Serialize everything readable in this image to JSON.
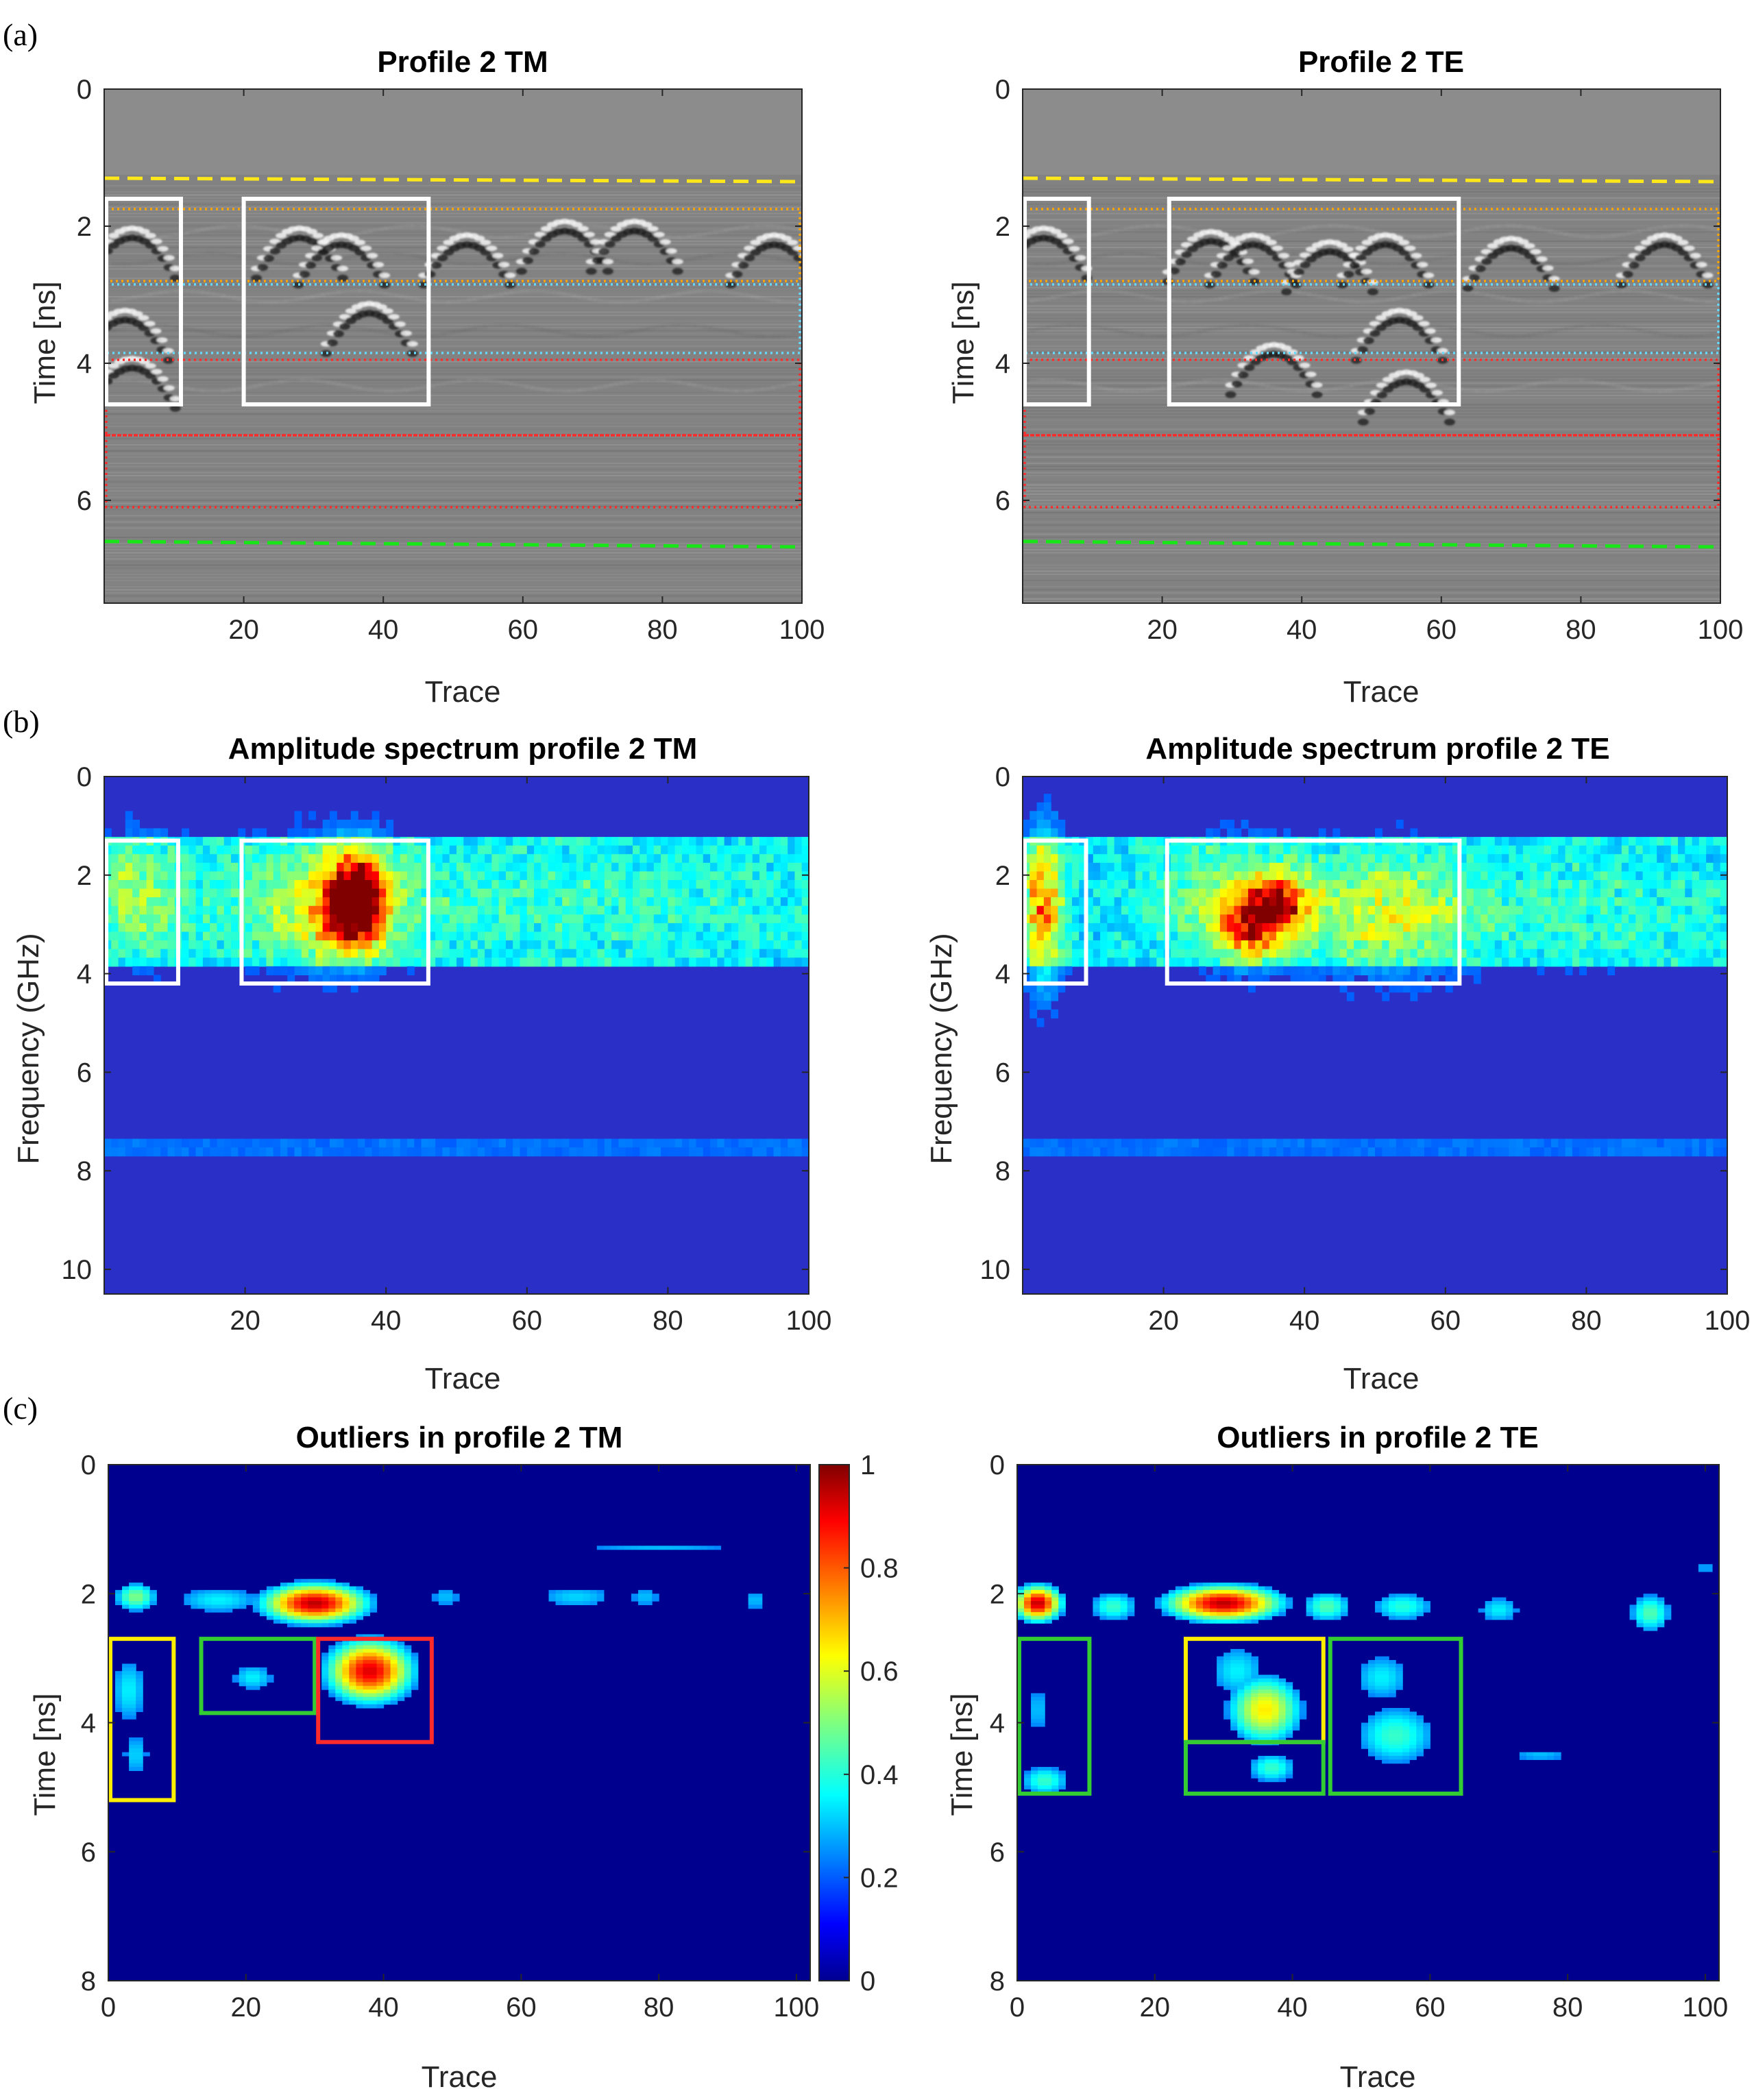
{
  "panel_labels": [
    "(a)",
    "(b)",
    "(c)"
  ],
  "colors": {
    "yellow_dash": "#ffe81a",
    "green_dash": "#19e619",
    "orange_dot": "#ffa500",
    "cyan_dot": "#66d9ff",
    "red_dot": "#ff2a2a",
    "white_box": "#ffffff",
    "green_box": "#33cc33",
    "yellow_box": "#ffee00",
    "red_box": "#ee1111"
  },
  "chart_data": [
    {
      "id": "a_tm",
      "type": "heatmap",
      "style": "radargram",
      "title": "Profile 2 TM",
      "xlabel": "Trace",
      "ylabel": "Time [ns]",
      "xlim": [
        0,
        100
      ],
      "ylim": [
        0,
        7.5
      ],
      "xticks": [
        20,
        40,
        60,
        80,
        100
      ],
      "yticks": [
        0,
        2,
        4,
        6
      ],
      "horizontal_lines": [
        {
          "type": "yellow-dashed",
          "x": [
            0,
            100
          ],
          "y": [
            1.3,
            1.35
          ]
        },
        {
          "type": "green-dashed",
          "x": [
            0,
            100
          ],
          "y": [
            6.6,
            6.68
          ]
        }
      ],
      "dotted_bands": [
        {
          "color": "orange",
          "x": [
            0,
            100
          ],
          "y": [
            1.75,
            2.8
          ]
        },
        {
          "color": "cyan",
          "x": [
            0,
            100
          ],
          "y": [
            2.85,
            3.85
          ]
        },
        {
          "color": "red",
          "x": [
            0,
            100
          ],
          "y": [
            3.95,
            5.05
          ]
        },
        {
          "color": "red",
          "x": [
            0,
            100
          ],
          "y": [
            5.05,
            6.1
          ]
        }
      ],
      "boxes": [
        {
          "color": "white",
          "x": [
            0.3,
            11
          ],
          "y": [
            1.6,
            4.6
          ]
        },
        {
          "color": "white",
          "x": [
            20,
            46.5
          ],
          "y": [
            1.6,
            4.6
          ]
        }
      ]
    },
    {
      "id": "a_te",
      "type": "heatmap",
      "style": "radargram",
      "title": "Profile 2 TE",
      "xlabel": "Trace",
      "ylabel": "Time [ns]",
      "xlim": [
        0,
        100
      ],
      "ylim": [
        0,
        7.5
      ],
      "xticks": [
        20,
        40,
        60,
        80,
        100
      ],
      "yticks": [
        0,
        2,
        4,
        6
      ],
      "horizontal_lines": [
        {
          "type": "yellow-dashed",
          "x": [
            0,
            100
          ],
          "y": [
            1.3,
            1.35
          ]
        },
        {
          "type": "green-dashed",
          "x": [
            0,
            100
          ],
          "y": [
            6.6,
            6.68
          ]
        }
      ],
      "dotted_bands": [
        {
          "color": "orange",
          "x": [
            0,
            100
          ],
          "y": [
            1.75,
            2.8
          ]
        },
        {
          "color": "cyan",
          "x": [
            0,
            100
          ],
          "y": [
            2.85,
            3.85
          ]
        },
        {
          "color": "red",
          "x": [
            0,
            100
          ],
          "y": [
            3.95,
            5.05
          ]
        },
        {
          "color": "red",
          "x": [
            0,
            100
          ],
          "y": [
            5.05,
            6.1
          ]
        }
      ],
      "boxes": [
        {
          "color": "white",
          "x": [
            0.3,
            9.5
          ],
          "y": [
            1.6,
            4.6
          ]
        },
        {
          "color": "white",
          "x": [
            21,
            62.5
          ],
          "y": [
            1.6,
            4.6
          ]
        }
      ]
    },
    {
      "id": "b_tm",
      "type": "heatmap",
      "style": "spectrum",
      "title": "Amplitude spectrum profile 2 TM",
      "xlabel": "Trace",
      "ylabel": "Frequency (GHz)",
      "xlim": [
        0,
        100
      ],
      "ylim": [
        0,
        10.5
      ],
      "xticks": [
        20,
        40,
        60,
        80,
        100
      ],
      "yticks": [
        0,
        2,
        4,
        6,
        8,
        10
      ],
      "boxes": [
        {
          "color": "white",
          "x": [
            0.3,
            10.5
          ],
          "y": [
            1.3,
            4.2
          ]
        },
        {
          "color": "white",
          "x": [
            19.5,
            46
          ],
          "y": [
            1.3,
            4.2
          ]
        }
      ],
      "hotspots": [
        {
          "x": 5,
          "y": 2.4,
          "v": 0.45,
          "sx": 4,
          "sy": 0.8
        },
        {
          "x": 30,
          "y": 2.6,
          "v": 0.45,
          "sx": 8,
          "sy": 0.8
        },
        {
          "x": 36,
          "y": 2.3,
          "v": 0.85,
          "sx": 3,
          "sy": 0.6
        },
        {
          "x": 35,
          "y": 2.9,
          "v": 0.7,
          "sx": 3,
          "sy": 0.5
        },
        {
          "x": 62,
          "y": 2.6,
          "v": 0.3,
          "sx": 35,
          "sy": 0.8
        }
      ]
    },
    {
      "id": "b_te",
      "type": "heatmap",
      "style": "spectrum",
      "title": "Amplitude spectrum profile 2 TE",
      "xlabel": "Trace",
      "ylabel": "Frequency (GHz)",
      "xlim": [
        0,
        100
      ],
      "ylim": [
        0,
        10.5
      ],
      "xticks": [
        20,
        40,
        60,
        80,
        100
      ],
      "yticks": [
        0,
        2,
        4,
        6,
        8,
        10
      ],
      "boxes": [
        {
          "color": "white",
          "x": [
            0.3,
            9
          ],
          "y": [
            1.3,
            4.2
          ]
        },
        {
          "color": "white",
          "x": [
            20.5,
            62
          ],
          "y": [
            1.3,
            4.2
          ]
        }
      ],
      "hotspots": [
        {
          "x": 3,
          "y": 2.7,
          "v": 0.75,
          "sx": 2,
          "sy": 1.0
        },
        {
          "x": 30,
          "y": 2.5,
          "v": 0.45,
          "sx": 8,
          "sy": 0.8
        },
        {
          "x": 36,
          "y": 2.6,
          "v": 0.8,
          "sx": 3,
          "sy": 0.4
        },
        {
          "x": 32,
          "y": 3.1,
          "v": 0.7,
          "sx": 3,
          "sy": 0.4
        },
        {
          "x": 52,
          "y": 2.8,
          "v": 0.5,
          "sx": 8,
          "sy": 0.8
        },
        {
          "x": 80,
          "y": 2.7,
          "v": 0.3,
          "sx": 15,
          "sy": 0.8
        }
      ]
    },
    {
      "id": "c_tm",
      "type": "heatmap",
      "style": "outliers",
      "title": "Outliers in profile 2 TM",
      "xlabel": "Trace",
      "ylabel": "Time [ns]",
      "xlim": [
        0,
        102
      ],
      "ylim": [
        0,
        8
      ],
      "xticks": [
        0,
        20,
        40,
        60,
        80,
        100
      ],
      "yticks": [
        0,
        2,
        4,
        6,
        8
      ],
      "blobs": [
        {
          "x": 4,
          "y": 2.05,
          "v": 0.5,
          "sx": 2.5,
          "sy": 0.18
        },
        {
          "x": 16,
          "y": 2.1,
          "v": 0.35,
          "sx": 6,
          "sy": 0.2
        },
        {
          "x": 30,
          "y": 2.15,
          "v": 0.95,
          "sx": 5.5,
          "sy": 0.22
        },
        {
          "x": 38,
          "y": 3.2,
          "v": 0.92,
          "sx": 4.5,
          "sy": 0.35
        },
        {
          "x": 3,
          "y": 3.5,
          "v": 0.35,
          "sx": 2.5,
          "sy": 0.5
        },
        {
          "x": 4,
          "y": 4.5,
          "v": 0.32,
          "sx": 2,
          "sy": 0.35
        },
        {
          "x": 21,
          "y": 3.3,
          "v": 0.35,
          "sx": 3,
          "sy": 0.2
        },
        {
          "x": 49,
          "y": 2.05,
          "v": 0.3,
          "sx": 2.5,
          "sy": 0.18
        },
        {
          "x": 68,
          "y": 2.05,
          "v": 0.32,
          "sx": 6,
          "sy": 0.18
        },
        {
          "x": 78,
          "y": 2.05,
          "v": 0.3,
          "sx": 2.5,
          "sy": 0.18
        },
        {
          "x": 94,
          "y": 2.1,
          "v": 0.3,
          "sx": 2,
          "sy": 0.18
        },
        {
          "x": 80,
          "y": 1.3,
          "v": 0.3,
          "sx": 14,
          "sy": 0.06
        }
      ],
      "boxes": [
        {
          "color": "yellow",
          "x": [
            0.3,
            9.5
          ],
          "y": [
            2.7,
            5.2
          ]
        },
        {
          "color": "green",
          "x": [
            13.5,
            30
          ],
          "y": [
            2.7,
            3.85
          ]
        },
        {
          "color": "red",
          "x": [
            30.5,
            47
          ],
          "y": [
            2.7,
            4.3
          ]
        }
      ],
      "colorbar": {
        "ticks": [
          0,
          0.2,
          0.4,
          0.6,
          0.8,
          1
        ],
        "tick_labels": [
          "0",
          "0.2",
          "0.4",
          "0.6",
          "0.8",
          "1"
        ]
      }
    },
    {
      "id": "c_te",
      "type": "heatmap",
      "style": "outliers",
      "title": "Outliers in profile 2 TE",
      "xlabel": "Trace",
      "ylabel": "Time [ns]",
      "xlim": [
        0,
        102
      ],
      "ylim": [
        0,
        8
      ],
      "xticks": [
        0,
        20,
        40,
        60,
        80,
        100
      ],
      "yticks": [
        0,
        2,
        4,
        6,
        8
      ],
      "blobs": [
        {
          "x": 3,
          "y": 2.15,
          "v": 0.95,
          "sx": 2.5,
          "sy": 0.2
        },
        {
          "x": 14,
          "y": 2.2,
          "v": 0.42,
          "sx": 3,
          "sy": 0.2
        },
        {
          "x": 30,
          "y": 2.15,
          "v": 0.95,
          "sx": 6,
          "sy": 0.2
        },
        {
          "x": 45,
          "y": 2.2,
          "v": 0.45,
          "sx": 3,
          "sy": 0.2
        },
        {
          "x": 56,
          "y": 2.2,
          "v": 0.4,
          "sx": 4,
          "sy": 0.2
        },
        {
          "x": 70,
          "y": 2.25,
          "v": 0.35,
          "sx": 3,
          "sy": 0.2
        },
        {
          "x": 92,
          "y": 2.3,
          "v": 0.45,
          "sx": 2.5,
          "sy": 0.25
        },
        {
          "x": 36,
          "y": 3.8,
          "v": 0.65,
          "sx": 4,
          "sy": 0.4
        },
        {
          "x": 32,
          "y": 3.2,
          "v": 0.35,
          "sx": 4,
          "sy": 0.4
        },
        {
          "x": 37,
          "y": 4.7,
          "v": 0.42,
          "sx": 3,
          "sy": 0.2
        },
        {
          "x": 55,
          "y": 4.2,
          "v": 0.42,
          "sx": 5,
          "sy": 0.4
        },
        {
          "x": 53,
          "y": 3.3,
          "v": 0.35,
          "sx": 4,
          "sy": 0.35
        },
        {
          "x": 3,
          "y": 3.8,
          "v": 0.3,
          "sx": 2,
          "sy": 0.4
        },
        {
          "x": 4,
          "y": 4.9,
          "v": 0.42,
          "sx": 3,
          "sy": 0.2
        },
        {
          "x": 76,
          "y": 4.5,
          "v": 0.3,
          "sx": 5,
          "sy": 0.1
        },
        {
          "x": 100,
          "y": 1.6,
          "v": 0.3,
          "sx": 2,
          "sy": 0.06
        }
      ],
      "boxes": [
        {
          "color": "green",
          "x": [
            0.3,
            10.5
          ],
          "y": [
            2.7,
            5.1
          ]
        },
        {
          "color": "yellow",
          "x": [
            24.5,
            44.5
          ],
          "y": [
            2.7,
            4.3
          ]
        },
        {
          "color": "green",
          "x": [
            24.5,
            44.5
          ],
          "y": [
            4.3,
            5.1
          ]
        },
        {
          "color": "green",
          "x": [
            45.5,
            64.5
          ],
          "y": [
            2.7,
            5.1
          ]
        }
      ]
    }
  ]
}
